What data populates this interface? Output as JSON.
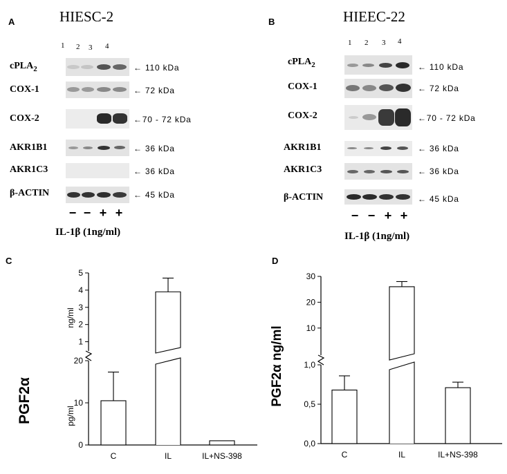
{
  "panels": {
    "A": {
      "letter": "A",
      "cell_line": "HIESC-2",
      "lanes": [
        "1",
        "2",
        "3",
        "4"
      ],
      "rows": [
        {
          "protein": "cPLA",
          "sub": "2",
          "mw": "← 110 kDa"
        },
        {
          "protein": "COX-1",
          "sub": "",
          "mw": "← 72 kDa"
        },
        {
          "protein": "COX-2",
          "sub": "",
          "mw": "←70 - 72 kDa"
        },
        {
          "protein": "AKR1B1",
          "sub": "",
          "mw": "← 36 kDa"
        },
        {
          "protein": "AKR1C3",
          "sub": "",
          "mw": "← 36 kDa"
        },
        {
          "protein": "β-ACTIN",
          "sub": "",
          "mw": "← 45 kDa"
        }
      ],
      "signs": [
        "−",
        "−",
        "+",
        "+"
      ],
      "treatment": "IL-1β (1ng/ml)"
    },
    "B": {
      "letter": "B",
      "cell_line": "HIEEC-22",
      "lanes": [
        "1",
        "2",
        "3",
        "4"
      ],
      "rows": [
        {
          "protein": "cPLA",
          "sub": "2",
          "mw": "← 110 kDa"
        },
        {
          "protein": "COX-1",
          "sub": "",
          "mw": "← 72 kDa"
        },
        {
          "protein": "COX-2",
          "sub": "",
          "mw": "←70 - 72 kDa"
        },
        {
          "protein": "AKR1B1",
          "sub": "",
          "mw": "← 36 kDa"
        },
        {
          "protein": "AKR1C3",
          "sub": "",
          "mw": "← 36 kDa"
        },
        {
          "protein": "β-ACTIN",
          "sub": "",
          "mw": "← 45 kDa"
        }
      ],
      "signs": [
        "−",
        "−",
        "+",
        "+"
      ],
      "treatment": "IL-1β (1ng/ml)"
    },
    "C": {
      "letter": "C"
    },
    "D": {
      "letter": "D"
    }
  },
  "chart_data": [
    {
      "panel": "C",
      "type": "bar",
      "ylabel": "PGF2α",
      "categories": [
        "C",
        "IL",
        "IL+NS-398"
      ],
      "upper_axis": {
        "unit": "ng/ml",
        "range": [
          0,
          5
        ],
        "ticks": [
          "1",
          "2",
          "3",
          "4",
          "5"
        ]
      },
      "lower_axis": {
        "unit": "pg/ml",
        "range": [
          0,
          20
        ],
        "ticks": [
          "0",
          "10",
          "20"
        ]
      },
      "values": [
        {
          "category": "C",
          "value": 10.5,
          "unit": "pg/ml",
          "error": 6.8
        },
        {
          "category": "IL",
          "value": 3.9,
          "unit": "ng/ml",
          "error": 0.8
        },
        {
          "category": "IL+NS-398",
          "value": 1.0,
          "unit": "pg/ml",
          "error": 0
        }
      ]
    },
    {
      "panel": "D",
      "type": "bar",
      "ylabel": "PGF2α ng/ml",
      "categories": [
        "C",
        "IL",
        "IL+NS-398"
      ],
      "upper_axis": {
        "range": [
          0,
          30
        ],
        "ticks": [
          "10",
          "20",
          "30"
        ]
      },
      "lower_axis": {
        "range": [
          0,
          1.0
        ],
        "ticks": [
          "0,0",
          "0,5",
          "1,0"
        ]
      },
      "values": [
        {
          "category": "C",
          "value": 0.68,
          "error": 0.18
        },
        {
          "category": "IL",
          "value": 26,
          "error": 2
        },
        {
          "category": "IL+NS-398",
          "value": 0.71,
          "error": 0.07
        }
      ]
    }
  ]
}
